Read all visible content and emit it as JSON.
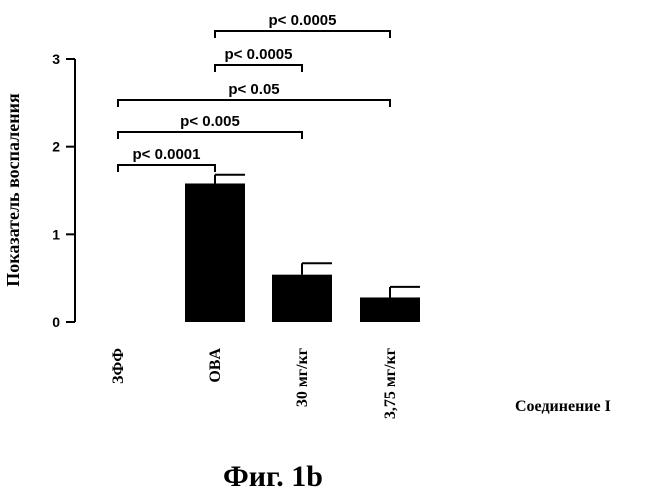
{
  "chart_data": {
    "type": "bar",
    "categories": [
      "ЗФФ",
      "OBA",
      "30 мг/кг",
      "3,75 мг/кг"
    ],
    "values": [
      0,
      1.58,
      0.54,
      0.28
    ],
    "errors": [
      0,
      0.1,
      0.13,
      0.12
    ],
    "ylabel": "Показатель воспаления",
    "xlabel": "Соединение I",
    "ylim": [
      0,
      3
    ],
    "yticks": [
      0,
      1,
      2,
      3
    ],
    "bar_color": "#000000",
    "grid": false,
    "comparisons": [
      {
        "from": 0,
        "to": 1,
        "label": "p< 0.0001"
      },
      {
        "from": 0,
        "to": 2,
        "label": "p< 0.005"
      },
      {
        "from": 0,
        "to": 3,
        "label": "p< 0.05"
      },
      {
        "from": 1,
        "to": 2,
        "label": "p< 0.0005"
      },
      {
        "from": 1,
        "to": 3,
        "label": "p< 0.0005"
      }
    ]
  },
  "caption": "Фиг. 1b"
}
